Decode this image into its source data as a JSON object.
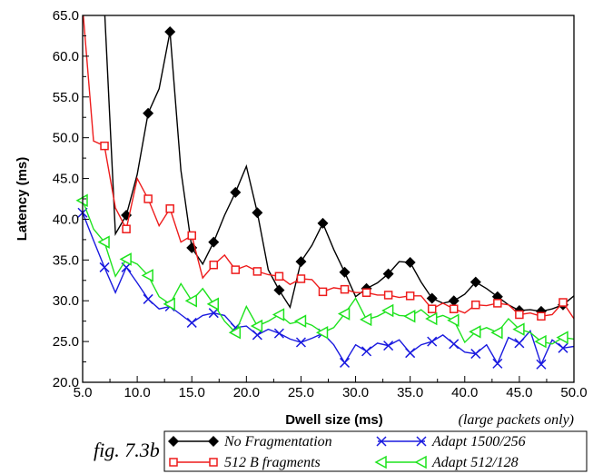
{
  "figure_caption": "fig. 7.3b",
  "chart_data": {
    "type": "line",
    "xlabel": "Dwell size (ms)",
    "xlabel_note": "(large packets only)",
    "ylabel": "Latency (ms)",
    "xlim": [
      5,
      50
    ],
    "ylim": [
      20,
      65
    ],
    "xticks": [
      "5.0",
      "10.0",
      "15.0",
      "20.0",
      "25.0",
      "30.0",
      "35.0",
      "40.0",
      "45.0",
      "50.0"
    ],
    "yticks": [
      "20.0",
      "25.0",
      "30.0",
      "35.0",
      "40.0",
      "45.0",
      "50.0",
      "55.0",
      "60.0",
      "65.0"
    ],
    "grid": false,
    "legend_position": "bottom-right, below plot",
    "series": [
      {
        "name": "No Fragmentation",
        "color": "#000000",
        "marker": "diamond",
        "x": [
          7,
          8,
          9,
          10,
          11,
          12,
          13,
          14,
          15,
          16,
          17,
          18,
          19,
          20,
          21,
          22,
          23,
          24,
          25,
          26,
          27,
          28,
          29,
          30,
          31,
          32,
          33,
          34,
          35,
          36,
          37,
          38,
          39,
          40,
          41,
          42,
          43,
          44,
          45,
          46,
          47,
          48,
          49,
          50
        ],
        "y": [
          66,
          38.2,
          40.5,
          45.5,
          53,
          56,
          63,
          46,
          36.5,
          34.5,
          37.2,
          40.5,
          43.3,
          46.5,
          40.8,
          33.8,
          31.3,
          29.2,
          34.8,
          36.8,
          39.5,
          36.3,
          33.5,
          30.5,
          31.5,
          32.2,
          33.3,
          34.8,
          34.7,
          32.3,
          30.3,
          29.7,
          30,
          30.8,
          32.3,
          31.5,
          30.5,
          29.5,
          28.8,
          28.9,
          28.7,
          29,
          29.5,
          30.6
        ],
        "marker_x": [
          9,
          11,
          13,
          15,
          17,
          19,
          21,
          23,
          25,
          27,
          29,
          31,
          33,
          35,
          37,
          39,
          41,
          43,
          45,
          47,
          49
        ]
      },
      {
        "name": "512 B fragments",
        "color": "#ee1c1c",
        "marker": "square",
        "x": [
          5,
          6,
          7,
          8,
          9,
          10,
          11,
          12,
          13,
          14,
          15,
          16,
          17,
          18,
          19,
          20,
          21,
          22,
          23,
          24,
          25,
          26,
          27,
          28,
          29,
          30,
          31,
          32,
          33,
          34,
          35,
          36,
          37,
          38,
          39,
          40,
          41,
          42,
          43,
          44,
          45,
          46,
          47,
          48,
          49,
          50
        ],
        "y": [
          66,
          49.6,
          49,
          41.4,
          38.8,
          45,
          42.5,
          39.2,
          41.3,
          37.2,
          38,
          32.8,
          34.4,
          35.6,
          33.8,
          34.3,
          33.6,
          33.2,
          33,
          32,
          32.7,
          32.6,
          31.1,
          31.6,
          31.4,
          31,
          31,
          30.7,
          30.7,
          30.4,
          30.6,
          30.6,
          29,
          29.7,
          29,
          28.5,
          29.5,
          29.4,
          29.7,
          29.5,
          28.3,
          28.5,
          28.1,
          28.3,
          29.8,
          27.8
        ],
        "marker_x": [
          7,
          9,
          11,
          13,
          15,
          17,
          19,
          21,
          23,
          25,
          27,
          29,
          31,
          33,
          35,
          37,
          39,
          41,
          43,
          45,
          47,
          49
        ]
      },
      {
        "name": "Adapt 1500/256",
        "color": "#1a1adf",
        "marker": "x",
        "x": [
          5,
          6,
          7,
          8,
          9,
          10,
          11,
          12,
          13,
          14,
          15,
          16,
          17,
          18,
          19,
          20,
          21,
          22,
          23,
          24,
          25,
          26,
          27,
          28,
          29,
          30,
          31,
          32,
          33,
          34,
          35,
          36,
          37,
          38,
          39,
          40,
          41,
          42,
          43,
          44,
          45,
          46,
          47,
          48,
          49,
          50
        ],
        "y": [
          40.8,
          37.4,
          34.1,
          31,
          34.1,
          32.2,
          30.2,
          29,
          29.3,
          28.3,
          27.3,
          28.2,
          28.5,
          28.2,
          26.7,
          26.9,
          25.8,
          26.5,
          26,
          25.3,
          24.9,
          25.4,
          26,
          24.6,
          22.4,
          24.6,
          23.8,
          24.8,
          24.5,
          25.2,
          23.6,
          24.6,
          25,
          25.8,
          24.7,
          23.7,
          23.5,
          24.6,
          22.3,
          25.5,
          24.8,
          26.3,
          22.2,
          25.2,
          24.2,
          24.4
        ],
        "marker_x": [
          5,
          7,
          9,
          11,
          13,
          15,
          17,
          19,
          21,
          23,
          25,
          27,
          29,
          31,
          33,
          35,
          37,
          39,
          41,
          43,
          45,
          47,
          49
        ]
      },
      {
        "name": "Adapt 512/128",
        "color": "#1ee31e",
        "marker": "triangle-left",
        "x": [
          5,
          6,
          7,
          8,
          9,
          10,
          11,
          12,
          13,
          14,
          15,
          16,
          17,
          18,
          19,
          20,
          21,
          22,
          23,
          24,
          25,
          26,
          27,
          28,
          29,
          30,
          31,
          32,
          33,
          34,
          35,
          36,
          37,
          38,
          39,
          40,
          41,
          42,
          43,
          44,
          45,
          46,
          47,
          48,
          49,
          50
        ],
        "y": [
          42.3,
          38.8,
          37.2,
          33,
          35.1,
          34.5,
          33.1,
          30.5,
          29.6,
          32.1,
          30,
          31.5,
          29.6,
          27.5,
          26.1,
          29.3,
          26.9,
          27.5,
          28.3,
          27.2,
          27.5,
          27,
          26.1,
          26.7,
          28.4,
          30.3,
          27.7,
          28.1,
          28.8,
          28.2,
          28.1,
          28.9,
          27.8,
          28.2,
          27.6,
          24.9,
          26.2,
          26.7,
          26.1,
          27.8,
          26.5,
          26.1,
          25,
          24.7,
          25.5,
          25.3
        ],
        "marker_x": [
          5,
          7,
          9,
          11,
          13,
          15,
          17,
          19,
          21,
          23,
          25,
          27,
          29,
          31,
          33,
          35,
          37,
          39,
          41,
          43,
          45,
          47,
          49
        ]
      }
    ]
  }
}
